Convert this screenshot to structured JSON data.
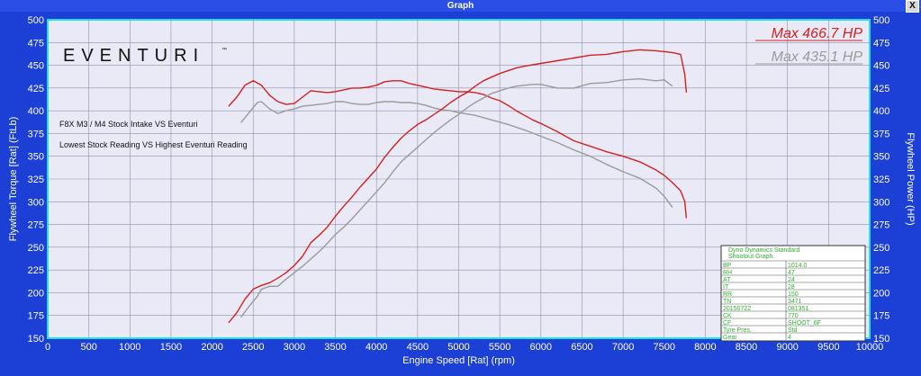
{
  "window": {
    "title": "Graph",
    "close_label": "X"
  },
  "colors": {
    "eventuri": "#d42020",
    "stock": "#9a9a9a",
    "plot_bg": "#eaeaf6",
    "frame": "#1c3fd6",
    "axis_text": "#ffffff",
    "plot_border": "#22e0e8",
    "legend_text": "#2bb52b"
  },
  "chart_data": {
    "type": "line",
    "brand": "EVENTURI",
    "brand_mark": "™",
    "annotations": [
      "F8X M3 / M4 Stock Intake VS Eventuri",
      "Lowest Stock Reading VS Highest Eventuri Reading"
    ],
    "max_labels": [
      {
        "text": "Max 466.7 HP",
        "series": "eventuri"
      },
      {
        "text": "Max 435.1 HP",
        "series": "stock"
      }
    ],
    "xlabel": "Engine Speed [Rat] (rpm)",
    "ylabel_left": "Flywheel Torque [Rat] (FtLb)",
    "ylabel_right": "Flywheel Power (HP)",
    "xlim": [
      0,
      10000
    ],
    "ylim": [
      150,
      500
    ],
    "x_ticks": [
      0,
      500,
      1000,
      1500,
      2000,
      2500,
      3000,
      3500,
      4000,
      4500,
      5000,
      5500,
      6000,
      6500,
      7000,
      7500,
      8000,
      8500,
      9000,
      9500,
      10000
    ],
    "y_ticks": [
      150,
      175,
      200,
      225,
      250,
      275,
      300,
      325,
      350,
      375,
      400,
      425,
      450,
      475,
      500
    ],
    "grid": true,
    "series": [
      {
        "key": "eventuri_torque",
        "color_key": "eventuri",
        "points": [
          [
            2200,
            405
          ],
          [
            2300,
            415
          ],
          [
            2400,
            428
          ],
          [
            2500,
            433
          ],
          [
            2600,
            428
          ],
          [
            2700,
            417
          ],
          [
            2800,
            410
          ],
          [
            2900,
            407
          ],
          [
            3000,
            408
          ],
          [
            3100,
            415
          ],
          [
            3200,
            422
          ],
          [
            3300,
            421
          ],
          [
            3400,
            420
          ],
          [
            3500,
            421
          ],
          [
            3600,
            423
          ],
          [
            3700,
            425
          ],
          [
            3800,
            425
          ],
          [
            3900,
            426
          ],
          [
            4000,
            428
          ],
          [
            4100,
            432
          ],
          [
            4200,
            433
          ],
          [
            4300,
            433
          ],
          [
            4400,
            430
          ],
          [
            4500,
            428
          ],
          [
            4600,
            426
          ],
          [
            4700,
            424
          ],
          [
            4800,
            423
          ],
          [
            4900,
            422
          ],
          [
            5000,
            421
          ],
          [
            5100,
            421
          ],
          [
            5200,
            420
          ],
          [
            5300,
            418
          ],
          [
            5400,
            414
          ],
          [
            5500,
            411
          ],
          [
            5600,
            406
          ],
          [
            5700,
            400
          ],
          [
            5800,
            395
          ],
          [
            5900,
            390
          ],
          [
            6000,
            386
          ],
          [
            6200,
            377
          ],
          [
            6400,
            367
          ],
          [
            6600,
            361
          ],
          [
            6800,
            355
          ],
          [
            7000,
            350
          ],
          [
            7200,
            344
          ],
          [
            7400,
            335
          ],
          [
            7500,
            329
          ],
          [
            7600,
            321
          ],
          [
            7700,
            312
          ],
          [
            7750,
            300
          ],
          [
            7770,
            282
          ]
        ]
      },
      {
        "key": "stock_torque",
        "color_key": "stock",
        "points": [
          [
            2350,
            387
          ],
          [
            2450,
            398
          ],
          [
            2550,
            409
          ],
          [
            2600,
            410
          ],
          [
            2700,
            402
          ],
          [
            2800,
            397
          ],
          [
            2900,
            400
          ],
          [
            3000,
            402
          ],
          [
            3100,
            405
          ],
          [
            3200,
            406
          ],
          [
            3300,
            407
          ],
          [
            3400,
            408
          ],
          [
            3500,
            410
          ],
          [
            3600,
            410
          ],
          [
            3700,
            408
          ],
          [
            3800,
            407
          ],
          [
            3900,
            407
          ],
          [
            4000,
            409
          ],
          [
            4100,
            410
          ],
          [
            4200,
            410
          ],
          [
            4300,
            409
          ],
          [
            4400,
            409
          ],
          [
            4500,
            408
          ],
          [
            4600,
            406
          ],
          [
            4700,
            403
          ],
          [
            4800,
            401
          ],
          [
            4900,
            400
          ],
          [
            5000,
            398
          ],
          [
            5200,
            395
          ],
          [
            5400,
            390
          ],
          [
            5600,
            385
          ],
          [
            5800,
            379
          ],
          [
            6000,
            372
          ],
          [
            6200,
            365
          ],
          [
            6400,
            357
          ],
          [
            6600,
            350
          ],
          [
            6800,
            341
          ],
          [
            7000,
            333
          ],
          [
            7200,
            326
          ],
          [
            7400,
            315
          ],
          [
            7500,
            306
          ],
          [
            7600,
            294
          ]
        ]
      },
      {
        "key": "eventuri_power",
        "color_key": "eventuri",
        "points": [
          [
            2200,
            167
          ],
          [
            2300,
            178
          ],
          [
            2400,
            193
          ],
          [
            2500,
            204
          ],
          [
            2600,
            208
          ],
          [
            2700,
            211
          ],
          [
            2800,
            216
          ],
          [
            2900,
            222
          ],
          [
            3000,
            230
          ],
          [
            3100,
            240
          ],
          [
            3200,
            255
          ],
          [
            3300,
            263
          ],
          [
            3400,
            272
          ],
          [
            3500,
            284
          ],
          [
            3600,
            295
          ],
          [
            3700,
            305
          ],
          [
            3800,
            316
          ],
          [
            3900,
            326
          ],
          [
            4000,
            336
          ],
          [
            4100,
            349
          ],
          [
            4200,
            360
          ],
          [
            4300,
            370
          ],
          [
            4400,
            378
          ],
          [
            4500,
            385
          ],
          [
            4600,
            390
          ],
          [
            4700,
            396
          ],
          [
            4800,
            402
          ],
          [
            4900,
            409
          ],
          [
            5000,
            415
          ],
          [
            5100,
            420
          ],
          [
            5200,
            427
          ],
          [
            5300,
            433
          ],
          [
            5400,
            437
          ],
          [
            5500,
            441
          ],
          [
            5600,
            444
          ],
          [
            5700,
            447
          ],
          [
            5800,
            449
          ],
          [
            6000,
            452
          ],
          [
            6200,
            455
          ],
          [
            6400,
            458
          ],
          [
            6600,
            461
          ],
          [
            6800,
            462
          ],
          [
            7000,
            465
          ],
          [
            7200,
            467
          ],
          [
            7400,
            466
          ],
          [
            7500,
            465
          ],
          [
            7600,
            464
          ],
          [
            7700,
            462
          ],
          [
            7750,
            440
          ],
          [
            7770,
            420
          ]
        ]
      },
      {
        "key": "stock_power",
        "color_key": "stock",
        "points": [
          [
            2350,
            173
          ],
          [
            2450,
            185
          ],
          [
            2550,
            196
          ],
          [
            2600,
            204
          ],
          [
            2700,
            207
          ],
          [
            2800,
            207
          ],
          [
            2900,
            215
          ],
          [
            3000,
            222
          ],
          [
            3100,
            229
          ],
          [
            3200,
            237
          ],
          [
            3300,
            245
          ],
          [
            3400,
            254
          ],
          [
            3500,
            264
          ],
          [
            3600,
            272
          ],
          [
            3700,
            281
          ],
          [
            3800,
            291
          ],
          [
            3900,
            301
          ],
          [
            4000,
            311
          ],
          [
            4100,
            321
          ],
          [
            4200,
            333
          ],
          [
            4300,
            344
          ],
          [
            4400,
            352
          ],
          [
            4500,
            360
          ],
          [
            4600,
            368
          ],
          [
            4700,
            376
          ],
          [
            4800,
            383
          ],
          [
            4900,
            390
          ],
          [
            5000,
            396
          ],
          [
            5100,
            403
          ],
          [
            5200,
            409
          ],
          [
            5300,
            414
          ],
          [
            5400,
            419
          ],
          [
            5500,
            422
          ],
          [
            5600,
            425
          ],
          [
            5700,
            427
          ],
          [
            5800,
            428
          ],
          [
            5900,
            429
          ],
          [
            6000,
            429
          ],
          [
            6200,
            425
          ],
          [
            6400,
            425
          ],
          [
            6600,
            430
          ],
          [
            6800,
            431
          ],
          [
            7000,
            434
          ],
          [
            7200,
            435
          ],
          [
            7400,
            433
          ],
          [
            7500,
            434
          ],
          [
            7600,
            427
          ]
        ]
      }
    ],
    "legend_box": {
      "title": "Dyno Dynamics Standard",
      "subtitle": "Shootout Graph.",
      "rows": [
        [
          "BP",
          "1014.0"
        ],
        [
          "RH",
          "47"
        ],
        [
          "AT",
          "24"
        ],
        [
          "IT",
          "28"
        ],
        [
          "RR",
          "150"
        ],
        [
          "TN",
          "3471"
        ],
        [
          "20150722",
          "081351"
        ],
        [
          "CK",
          "770"
        ],
        [
          "CF",
          "SHOOT_6F"
        ],
        [
          "Tyre Pres.",
          "Std"
        ],
        [
          "Gear",
          "4"
        ]
      ]
    }
  }
}
